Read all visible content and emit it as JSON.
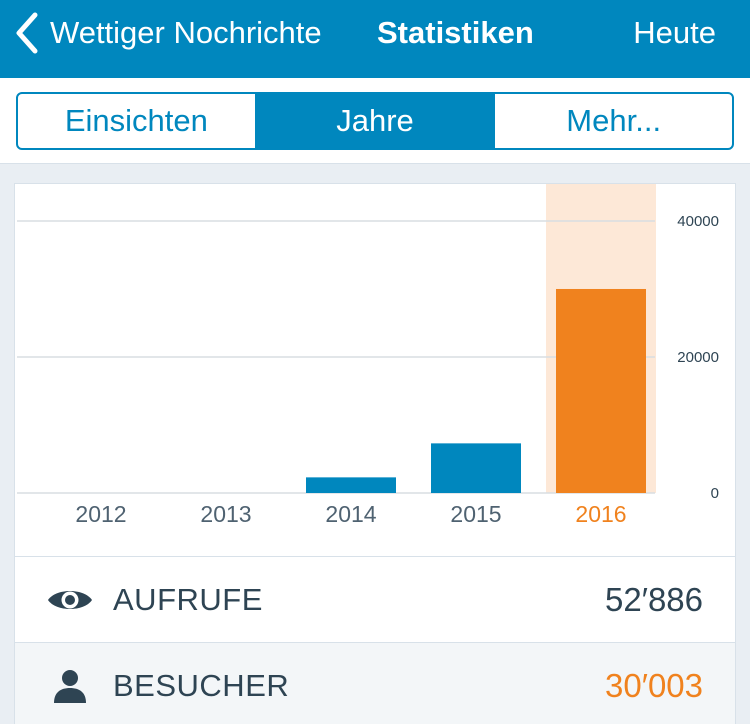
{
  "navbar": {
    "back_label": "Wettiger Nochrichte",
    "title": "Statistiken",
    "today_label": "Heute"
  },
  "tabs": [
    {
      "label": "Einsichten",
      "active": false
    },
    {
      "label": "Jahre",
      "active": true
    },
    {
      "label": "Mehr...",
      "active": false
    }
  ],
  "chart_data": {
    "type": "bar",
    "categories": [
      "2012",
      "2013",
      "2014",
      "2015",
      "2016"
    ],
    "values": [
      0,
      0,
      2300,
      7300,
      30003
    ],
    "selected_index": 4,
    "ylim": [
      0,
      40000
    ],
    "yticks": [
      "0",
      "20000",
      "40000"
    ],
    "ytick_values": [
      0,
      20000,
      40000
    ],
    "y_axis_side": "right",
    "grid": true,
    "colors": {
      "bar": "#0087be",
      "selected": "#f0821e",
      "selected_bg": "#fde8d7"
    }
  },
  "stats": [
    {
      "icon": "eye-icon",
      "label": "AUFRUFE",
      "value": "52′886"
    },
    {
      "icon": "person-icon",
      "label": "BESUCHER",
      "value": "30′003"
    }
  ]
}
